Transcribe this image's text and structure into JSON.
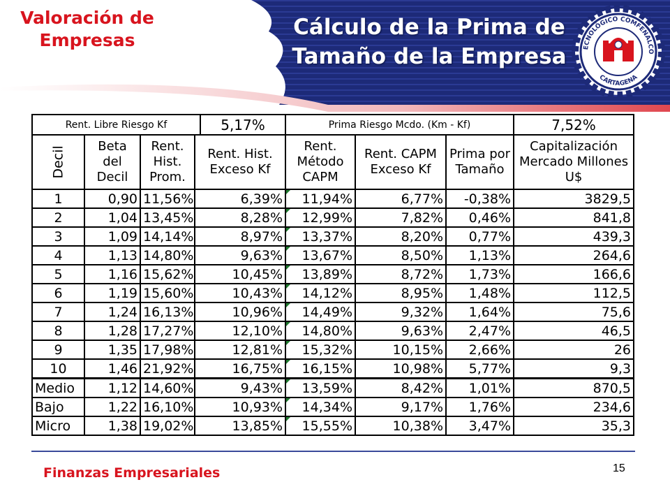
{
  "header": {
    "section_title": "Valoración de Empresas",
    "slide_title": "Cálculo de la Prima de Tamaño de la Empresa",
    "logo_text": "TECNOLÓGICO COMFENALCO",
    "logo_city": "CARTAGENA",
    "colors": {
      "title_red": "#d8141e",
      "banner_navy": "#1d2a78"
    }
  },
  "table": {
    "top": {
      "kf_label": "Rent. Libre Riesgo Kf",
      "kf_value": "5,17%",
      "prima_label": "Prima Riesgo Mcdo. (Km - Kf)",
      "prima_value": "7,52%"
    },
    "headers": {
      "decil": "Decil",
      "beta": "Beta del Decil",
      "rent_hist": "Rent. Hist. Prom.",
      "exceso": "Rent. Hist. Exceso Kf",
      "metodo": "Rent. Método CAPM",
      "capm": "Rent. CAPM Exceso Kf",
      "prima": "Prima por Tamaño",
      "cap": "Capitalización Mercado Millones U$"
    },
    "rows": [
      [
        "1",
        "0,90",
        "11,56%",
        "6,39%",
        "11,94%",
        "6,77%",
        "-0,38%",
        "3829,5"
      ],
      [
        "2",
        "1,04",
        "13,45%",
        "8,28%",
        "12,99%",
        "7,82%",
        "0,46%",
        "841,8"
      ],
      [
        "3",
        "1,09",
        "14,14%",
        "8,97%",
        "13,37%",
        "8,20%",
        "0,77%",
        "439,3"
      ],
      [
        "4",
        "1,13",
        "14,80%",
        "9,63%",
        "13,67%",
        "8,50%",
        "1,13%",
        "264,6"
      ],
      [
        "5",
        "1,16",
        "15,62%",
        "10,45%",
        "13,89%",
        "8,72%",
        "1,73%",
        "166,6"
      ],
      [
        "6",
        "1,19",
        "15,60%",
        "10,43%",
        "14,12%",
        "8,95%",
        "1,48%",
        "112,5"
      ],
      [
        "7",
        "1,24",
        "16,13%",
        "10,96%",
        "14,49%",
        "9,32%",
        "1,64%",
        "75,6"
      ],
      [
        "8",
        "1,28",
        "17,27%",
        "12,10%",
        "14,80%",
        "9,63%",
        "2,47%",
        "46,5"
      ],
      [
        "9",
        "1,35",
        "17,98%",
        "12,81%",
        "15,32%",
        "10,15%",
        "2,66%",
        "26"
      ],
      [
        "10",
        "1,46",
        "21,92%",
        "16,75%",
        "16,15%",
        "10,98%",
        "5,77%",
        "9,3"
      ],
      [
        "Medio",
        "1,12",
        "14,60%",
        "9,43%",
        "13,59%",
        "8,42%",
        "1,01%",
        "870,5"
      ],
      [
        "Bajo",
        "1,22",
        "16,10%",
        "10,93%",
        "14,34%",
        "9,17%",
        "1,76%",
        "234,6"
      ],
      [
        "Micro",
        "1,38",
        "19,02%",
        "13,85%",
        "15,55%",
        "10,38%",
        "3,47%",
        "35,3"
      ]
    ]
  },
  "footer": {
    "course": "Finanzas Empresariales",
    "page_number": "15"
  }
}
